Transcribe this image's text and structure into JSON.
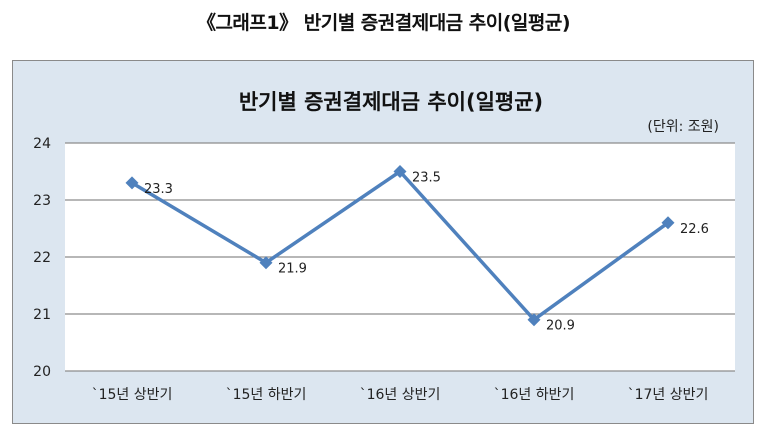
{
  "caption": "《그래프1》 반기별 증권결제대금 추이(일평균)",
  "chart_data": {
    "type": "line",
    "title": "반기별 증권결제대금 추이(일평균)",
    "unit_note": "(단위: 조원)",
    "categories": [
      "`15년 상반기",
      "`15년 하반기",
      "`16년 상반기",
      "`16년 하반기",
      "`17년 상반기"
    ],
    "series": [
      {
        "values": [
          23.3,
          21.9,
          23.5,
          20.9,
          22.6
        ]
      }
    ],
    "data_labels": [
      "23.3",
      "21.9",
      "23.5",
      "20.9",
      "22.6"
    ],
    "ylim": [
      20,
      24
    ],
    "yticks": [
      20,
      21,
      22,
      23,
      24
    ],
    "grid": true,
    "line_color": "#4f81bd",
    "plot_background": "#ffffff",
    "frame_background": "#dce6f0"
  }
}
